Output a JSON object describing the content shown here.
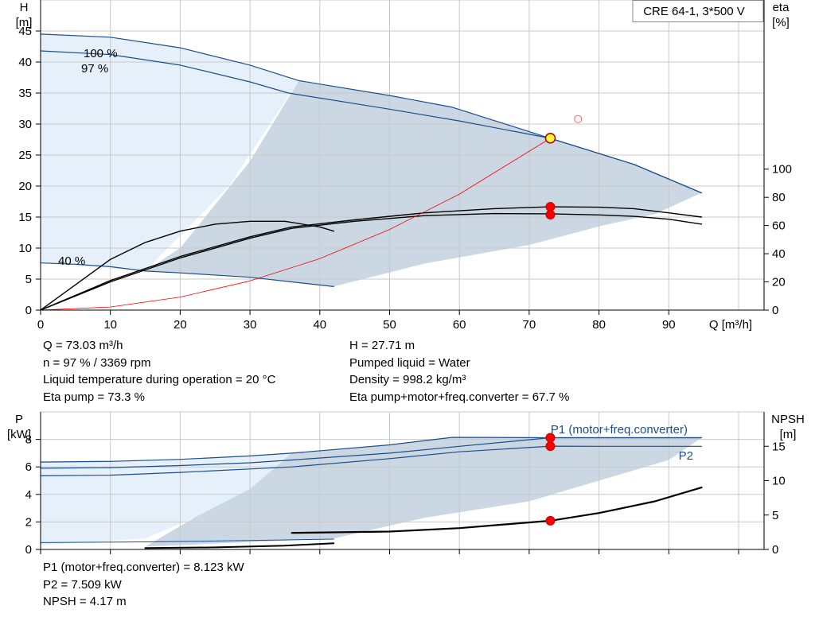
{
  "model_label": "CRE 64-1, 3*500 V",
  "colors": {
    "blue": "#1a4e8c",
    "black": "#000000",
    "shade": "#cbd8e4",
    "light": "#e6f0fa",
    "red": "#ff0000",
    "yellow": "#ffff33",
    "grid": "#c8c8c8"
  },
  "upper_info_left": [
    "Q = 73.03 m³/h",
    "n = 97 % / 3369 rpm",
    "Liquid temperature during operation = 20 °C",
    "Eta pump = 73.3 %"
  ],
  "upper_info_right": [
    "H = 27.71 m",
    "Pumped liquid = Water",
    "Density = 998.2 kg/m³",
    "Eta pump+motor+freq.converter = 67.7 %"
  ],
  "lower_info": [
    "P1 (motor+freq.converter) = 8.123 kW",
    "P2 = 7.509 kW",
    "NPSH = 4.17 m"
  ],
  "chart_data": [
    {
      "type": "line",
      "title": "",
      "xlabel": "Q [m³/h]",
      "ylabel": "H\n[m]",
      "ylabel_right": "eta\n[%]",
      "xlim": [
        0,
        100
      ],
      "ylim": [
        0,
        50
      ],
      "ylim_right": [
        0,
        220
      ],
      "x_ticks": [
        0,
        10,
        20,
        30,
        40,
        50,
        60,
        70,
        80,
        90
      ],
      "y_ticks": [
        0,
        5,
        10,
        15,
        20,
        25,
        30,
        35,
        40,
        45
      ],
      "y_ticks_right": [
        0,
        20,
        40,
        60,
        80,
        100
      ],
      "grid": true,
      "curve_labels": [
        "100 %",
        "97 %",
        "40 %"
      ],
      "series": [
        {
          "name": "100 %",
          "axis": "left",
          "color": "#1a4e8c",
          "width": 1.2,
          "x": [
            0,
            10,
            20,
            30,
            37,
            50,
            59,
            73,
            85,
            94.7
          ],
          "y": [
            44.5,
            44.0,
            42.3,
            39.5,
            37.0,
            34.6,
            32.7,
            27.71,
            23.5,
            18.9
          ]
        },
        {
          "name": "97 %",
          "axis": "left",
          "color": "#1a4e8c",
          "width": 1.2,
          "x": [
            0,
            10,
            20,
            30,
            35.5,
            50,
            60,
            73.03,
            85,
            94.7
          ],
          "y": [
            41.8,
            41.2,
            39.5,
            36.8,
            35.0,
            32.4,
            30.5,
            27.71,
            23.5,
            18.9
          ]
        },
        {
          "name": "40 %",
          "axis": "left",
          "color": "#1a4e8c",
          "width": 1.2,
          "x": [
            0,
            5,
            10,
            15,
            20,
            30,
            42
          ],
          "y": [
            7.6,
            7.4,
            7.0,
            6.3,
            6.0,
            5.3,
            3.8
          ]
        },
        {
          "name": "eta 100 %",
          "axis": "right",
          "color": "#000000",
          "width": 1.4,
          "x": [
            0,
            10,
            20,
            30,
            36,
            45,
            55,
            65,
            73,
            80,
            85,
            90,
            94.7
          ],
          "y": [
            0,
            21,
            38,
            52,
            59,
            64,
            69,
            72,
            73.3,
            73,
            72,
            69,
            66
          ]
        },
        {
          "name": "eta 97 %",
          "axis": "right",
          "color": "#000000",
          "width": 1.4,
          "x": [
            0,
            10,
            20,
            30,
            36,
            45,
            55,
            65,
            73,
            80,
            85,
            90,
            94.7
          ],
          "y": [
            0,
            20,
            37,
            51,
            58,
            63,
            67,
            68.5,
            68.3,
            67.5,
            66.5,
            64.5,
            61
          ]
        },
        {
          "name": "eta 40 %",
          "axis": "right",
          "color": "#000000",
          "width": 1.4,
          "x": [
            0,
            10,
            15,
            20,
            25,
            30,
            35,
            40,
            42
          ],
          "y": [
            0,
            36,
            48,
            56,
            61,
            63,
            63,
            59,
            56
          ]
        },
        {
          "name": "system curve",
          "axis": "left",
          "color": "#ff0000",
          "width": 0.8,
          "x": [
            0,
            10,
            20,
            30,
            40,
            50,
            60,
            73.03
          ],
          "y": [
            0,
            0.5,
            2.1,
            4.7,
            8.3,
            13.0,
            18.7,
            27.71
          ]
        }
      ],
      "operating_points": [
        {
          "axis": "left",
          "x": 73.03,
          "y": 27.71,
          "style": "yellow"
        },
        {
          "axis": "right",
          "x": 73.03,
          "y": 73.3,
          "style": "red"
        },
        {
          "axis": "right",
          "x": 73.03,
          "y": 67.7,
          "style": "red"
        },
        {
          "axis": "left",
          "x": 77,
          "y": 30.8,
          "style": "ring"
        }
      ]
    },
    {
      "type": "line",
      "title": "",
      "ylabel": "P\n[kW]",
      "ylabel_right": "NPSH\n[m]",
      "xlim": [
        0,
        100
      ],
      "ylim": [
        0,
        10
      ],
      "ylim_right": [
        0,
        20
      ],
      "y_ticks": [
        0,
        2,
        4,
        6,
        8
      ],
      "y_ticks_right": [
        0,
        5,
        10,
        15
      ],
      "grid": true,
      "series": [
        {
          "name": "P1 (motor+freq.converter)",
          "axis": "left",
          "color": "#1a4e8c",
          "width": 1.2,
          "labeled": true,
          "x": [
            0,
            10,
            20,
            30,
            36,
            50,
            59,
            73.03,
            80,
            94.7
          ],
          "y": [
            6.35,
            6.4,
            6.55,
            6.8,
            7.0,
            7.6,
            8.15,
            8.123,
            8.12,
            8.12
          ]
        },
        {
          "name": "P2",
          "axis": "left",
          "color": "#1a4e8c",
          "width": 1.2,
          "labeled": true,
          "x": [
            0,
            10,
            20,
            30,
            36,
            50,
            60,
            73.03,
            80,
            94.7
          ],
          "y": [
            5.35,
            5.4,
            5.6,
            5.85,
            6.0,
            6.6,
            7.1,
            7.509,
            7.5,
            7.5
          ]
        },
        {
          "name": "P 97 %",
          "axis": "left",
          "color": "#1a4e8c",
          "width": 1.2,
          "x": [
            0,
            10,
            20,
            30,
            36,
            50,
            60,
            73.03,
            85,
            94.7
          ],
          "y": [
            5.9,
            5.95,
            6.1,
            6.3,
            6.5,
            7.0,
            7.5,
            8.123,
            8.12,
            8.12
          ]
        },
        {
          "name": "P 40 %",
          "axis": "left",
          "color": "#1a4e8c",
          "width": 1.0,
          "x": [
            0,
            15,
            30,
            42
          ],
          "y": [
            0.5,
            0.55,
            0.65,
            0.75
          ]
        },
        {
          "name": "NPSH",
          "axis": "right",
          "color": "#000000",
          "width": 2.2,
          "x": [
            36,
            50,
            60,
            73.03,
            80,
            88,
            94.7
          ],
          "y": [
            2.4,
            2.6,
            3.1,
            4.17,
            5.3,
            7.0,
            9.0
          ]
        },
        {
          "name": "NPSH 40 %",
          "axis": "right",
          "color": "#000000",
          "width": 2.0,
          "x": [
            15,
            25,
            35,
            42
          ],
          "y": [
            0.2,
            0.3,
            0.55,
            0.9
          ]
        }
      ],
      "operating_points": [
        {
          "axis": "left",
          "x": 73.03,
          "y": 8.123,
          "style": "red"
        },
        {
          "axis": "left",
          "x": 73.03,
          "y": 7.509,
          "style": "red"
        },
        {
          "axis": "right",
          "x": 73.03,
          "y": 4.17,
          "style": "red"
        }
      ]
    }
  ]
}
